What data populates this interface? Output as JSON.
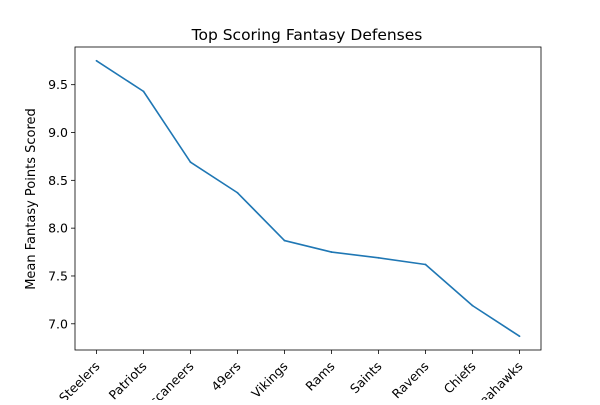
{
  "chart_data": {
    "type": "line",
    "title": "Top Scoring Fantasy Defenses",
    "xlabel": "",
    "ylabel": "Mean Fantasy Points Scored",
    "categories": [
      "Steelers",
      "Patriots",
      "Buccaneers",
      "49ers",
      "Vikings",
      "Rams",
      "Saints",
      "Ravens",
      "Chiefs",
      "Seahawks"
    ],
    "series": [
      {
        "values": [
          9.75,
          9.43,
          8.69,
          8.37,
          7.87,
          7.75,
          7.69,
          7.62,
          7.19,
          6.87
        ],
        "color": "#1f77b4"
      }
    ],
    "yticks": [
      7.0,
      7.5,
      8.0,
      8.5,
      9.0,
      9.5
    ],
    "ytick_labels": [
      "7.0",
      "7.5",
      "8.0",
      "8.5",
      "9.0",
      "9.5"
    ],
    "ylim": [
      6.726,
      9.894
    ],
    "grid": false,
    "legend": "none",
    "xtick_rotation_deg": 45
  }
}
